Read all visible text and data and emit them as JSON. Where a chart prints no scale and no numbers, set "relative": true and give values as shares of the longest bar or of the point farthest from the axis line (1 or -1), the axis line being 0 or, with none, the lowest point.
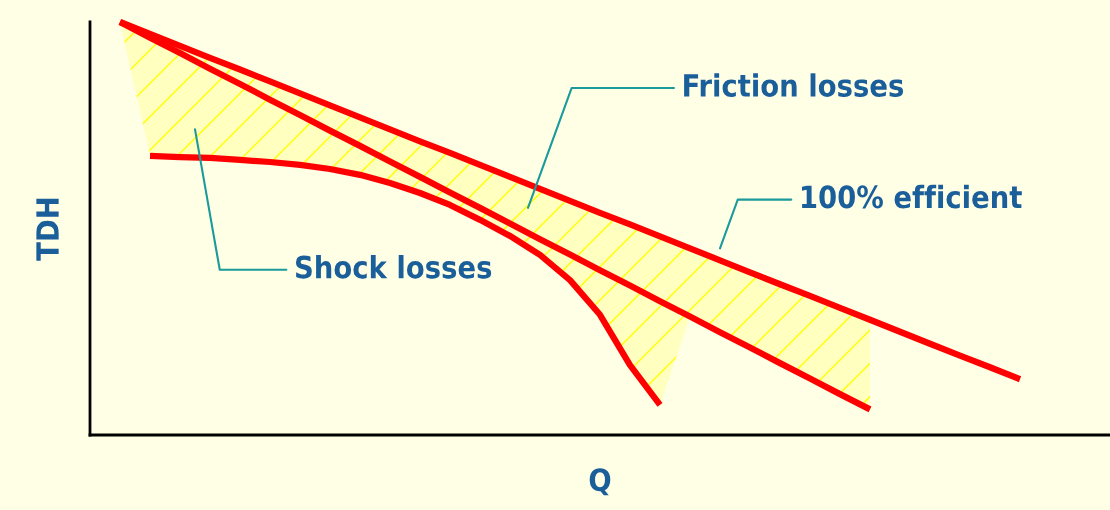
{
  "chart_data": {
    "type": "line",
    "relative": true,
    "xlabel": "Q",
    "ylabel": "TDH",
    "categories": [
      null,
      null,
      null,
      null,
      null,
      null,
      null,
      null,
      null,
      null,
      null,
      null,
      null,
      null,
      null,
      null,
      null,
      null,
      null,
      null,
      null,
      null,
      null,
      null,
      null,
      null,
      null,
      null,
      null,
      null,
      null
    ],
    "series": [
      {
        "color": "#ff0000",
        "values": [
          1,
          0.971,
          0.942,
          0.913,
          0.885,
          0.856,
          0.827,
          0.798,
          0.769,
          0.74,
          0.711,
          0.683,
          0.654,
          0.625,
          0.596,
          0.567,
          0.538,
          0.51,
          0.481,
          0.452,
          0.423,
          0.394,
          0.365,
          0.337,
          0.308,
          0.279,
          0.25,
          0.221,
          0.192,
          0.164,
          0.135
        ],
        "upper": [
          1,
          0.971,
          0.942,
          0.913,
          0.885,
          0.856,
          0.827,
          0.798,
          0.769,
          0.74,
          0.711,
          0.683,
          0.654,
          0.625,
          0.596,
          0.567,
          0.538,
          0.51,
          0.481,
          0.452,
          0.423,
          0.394,
          0.365,
          0.337,
          0.308,
          0.279,
          null,
          null,
          null,
          null,
          null
        ],
        "lower": [
          1,
          0.676,
          0.673,
          0.671,
          0.666,
          0.661,
          0.654,
          0.644,
          0.63,
          0.61,
          0.586,
          0.557,
          0.521,
          0.482,
          0.436,
          0.375,
          0.291,
          0.169,
          0.073,
          0.287,
          0.249,
          0.212,
          0.174,
          0.137,
          0.099,
          0.062,
          null,
          null,
          null,
          null,
          null
        ]
      },
      {
        "color": "#ff0000",
        "values": [
          1,
          0.962,
          0.925,
          0.887,
          0.85,
          0.812,
          0.775,
          0.737,
          0.7,
          0.662,
          0.625,
          0.587,
          0.55,
          0.512,
          0.474,
          0.437,
          0.399,
          0.362,
          0.324,
          0.287,
          0.249,
          0.212,
          0.174,
          0.137,
          0.099,
          0.062,
          null,
          null,
          null,
          null,
          null
        ]
      },
      {
        "color": "#ff0000",
        "values": [
          null,
          0.676,
          0.673,
          0.671,
          0.666,
          0.661,
          0.654,
          0.644,
          0.63,
          0.61,
          0.586,
          0.557,
          0.521,
          0.482,
          0.436,
          0.375,
          0.291,
          0.169,
          0.073,
          null,
          null,
          null,
          null,
          null,
          null,
          null,
          null,
          null,
          null,
          null,
          null
        ]
      }
    ],
    "annotations": [
      "100% efficient",
      "Friction losses",
      "Shock losses"
    ],
    "grid": false,
    "marker": "none",
    "line_style": "solid"
  }
}
